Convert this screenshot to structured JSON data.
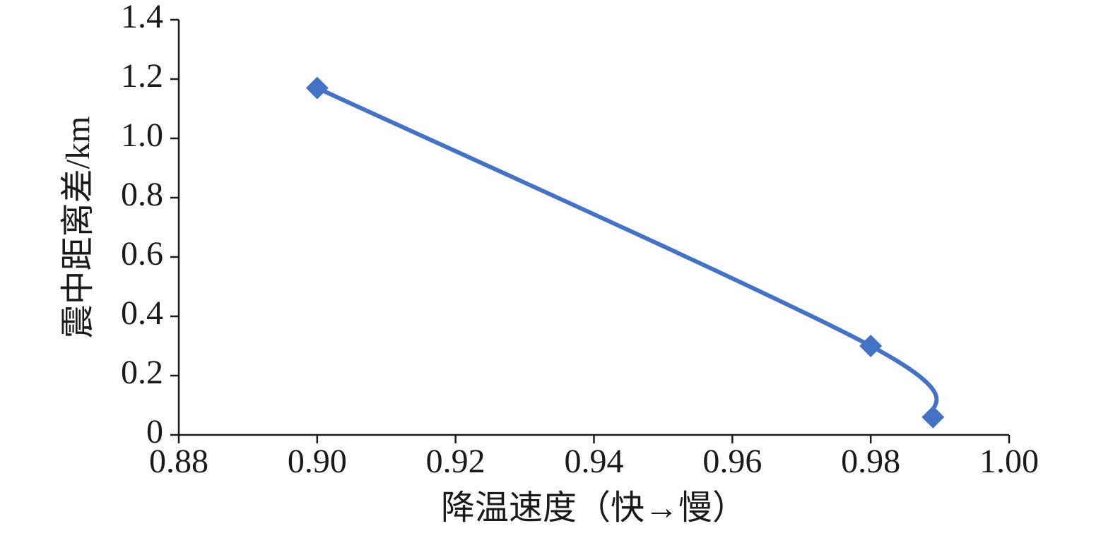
{
  "chart_data": {
    "type": "line",
    "smooth": true,
    "marker": "diamond",
    "x_label": "降温速度（快→慢）",
    "y_label": "震中距离差/km",
    "x": [
      0.9,
      0.98,
      0.989
    ],
    "series": [
      {
        "color": "#4472c4",
        "values": [
          1.17,
          0.3,
          0.06
        ]
      }
    ],
    "xlim": [
      0.88,
      1.0
    ],
    "xticks": [
      {
        "value": 0.88,
        "label": "0.88"
      },
      {
        "value": 0.9,
        "label": "0.90"
      },
      {
        "value": 0.92,
        "label": "0.92"
      },
      {
        "value": 0.94,
        "label": "0.94"
      },
      {
        "value": 0.96,
        "label": "0.96"
      },
      {
        "value": 0.98,
        "label": "0.98"
      },
      {
        "value": 1.0,
        "label": "1.00"
      }
    ],
    "ylim": [
      0,
      1.4
    ],
    "yticks": [
      0,
      0.2,
      0.4,
      0.6,
      0.8,
      {
        "value": 1.0,
        "label": "1.0"
      },
      1.2,
      1.4
    ],
    "grid": false
  }
}
